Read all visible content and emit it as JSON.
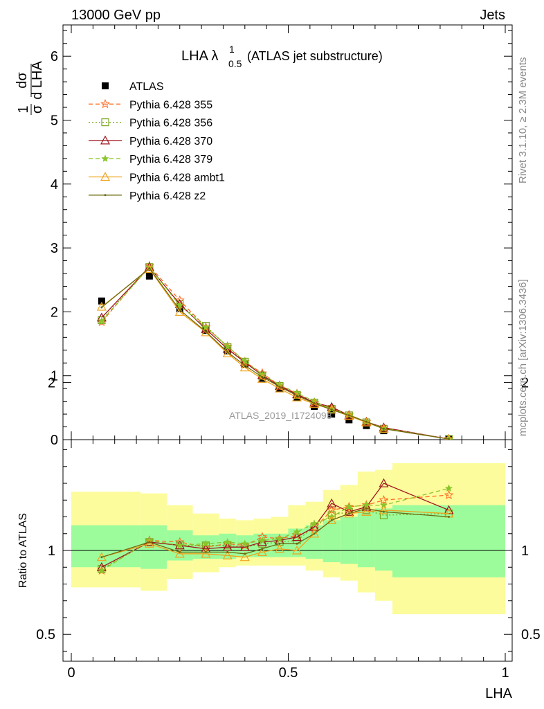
{
  "header": {
    "left": "13000 GeV pp",
    "right": "Jets"
  },
  "side": {
    "top": "Rivet 3.1.10, ≥ 2.3M events",
    "bottom": "mcplots.cern.ch [arXiv:1306.3436]"
  },
  "watermark": "ATLAS_2019_I1724098",
  "plot_title": {
    "main": "LHA λ",
    "sub": "0.5",
    "sup": "1",
    "suffix": "(ATLAS jet substructure)"
  },
  "axes": {
    "x_label": "LHA",
    "y_label_main": {
      "frac1": "1",
      "frac1_den": "σ",
      "frac2": "dσ",
      "frac2_den": "d LHA"
    },
    "y_label_ratio": "Ratio to ATLAS",
    "main_ticks": [
      "0",
      "1",
      "2",
      "3",
      "4",
      "5",
      "6"
    ],
    "ratio_ticks": [
      "0.5",
      "1",
      "2"
    ],
    "x_ticks": [
      "0",
      "0.5",
      "1"
    ]
  },
  "colors": {
    "ATLAS": "#000000",
    "p355": "#ff6a1f",
    "p356": "#7aa51e",
    "p370": "#a0141c",
    "p379": "#8ac52b",
    "ambt1": "#f0a31d",
    "z2": "#6b6b12",
    "band_green": "#9cfc9c",
    "band_yellow": "#fcfc9c"
  },
  "chart_data": [
    {
      "type": "line",
      "panel": "main",
      "xlabel": "LHA",
      "xlim": [
        0,
        1
      ],
      "ylim": [
        0,
        6.5
      ],
      "x": [
        0.07,
        0.18,
        0.25,
        0.31,
        0.36,
        0.4,
        0.44,
        0.48,
        0.52,
        0.56,
        0.6,
        0.64,
        0.68,
        0.72,
        0.87
      ],
      "series": [
        {
          "name": "ATLAS",
          "marker": "square",
          "values": [
            2.17,
            2.56,
            2.05,
            1.71,
            1.39,
            1.18,
            0.96,
            0.8,
            0.66,
            0.52,
            0.4,
            0.31,
            0.22,
            0.14,
            0.01
          ]
        },
        {
          "name": "Pythia 6.428 355",
          "marker": "star",
          "dash": "6,4",
          "values": [
            1.84,
            2.72,
            2.18,
            1.76,
            1.46,
            1.22,
            1.04,
            0.85,
            0.72,
            0.58,
            0.49,
            0.39,
            0.28,
            0.18,
            0.01
          ]
        },
        {
          "name": "Pythia 6.428 356",
          "marker": "open-square",
          "dash": "2,3",
          "values": [
            1.87,
            2.7,
            2.12,
            1.78,
            1.45,
            1.22,
            1.0,
            0.84,
            0.7,
            0.58,
            0.48,
            0.38,
            0.27,
            0.17,
            0.01
          ]
        },
        {
          "name": "Pythia 6.428 370",
          "marker": "open-triangle",
          "values": [
            1.91,
            2.7,
            2.12,
            1.73,
            1.42,
            1.21,
            1.01,
            0.84,
            0.71,
            0.58,
            0.51,
            0.38,
            0.28,
            0.19,
            0.01
          ]
        },
        {
          "name": "Pythia 6.428 379",
          "marker": "small-star",
          "dash": "6,4",
          "values": [
            1.86,
            2.7,
            2.1,
            1.76,
            1.46,
            1.23,
            1.02,
            0.86,
            0.73,
            0.6,
            0.48,
            0.39,
            0.28,
            0.18,
            0.01
          ]
        },
        {
          "name": "Pythia 6.428 ambt1",
          "marker": "open-triangle",
          "values": [
            2.08,
            2.67,
            2.0,
            1.68,
            1.35,
            1.13,
            0.95,
            0.8,
            0.66,
            0.56,
            0.47,
            0.37,
            0.27,
            0.17,
            0.01
          ]
        },
        {
          "name": "Pythia 6.428 z2",
          "marker": "dot",
          "values": [
            2.07,
            2.68,
            2.03,
            1.69,
            1.37,
            1.16,
            0.98,
            0.83,
            0.69,
            0.57,
            0.47,
            0.38,
            0.28,
            0.17,
            0.01
          ]
        }
      ]
    },
    {
      "type": "line",
      "panel": "ratio",
      "ylabel": "Ratio to ATLAS",
      "xlim": [
        0,
        1
      ],
      "ylim": [
        0.34,
        2.3
      ],
      "x": [
        0.07,
        0.18,
        0.25,
        0.31,
        0.36,
        0.4,
        0.44,
        0.48,
        0.52,
        0.56,
        0.6,
        0.64,
        0.68,
        0.72,
        0.87
      ],
      "series": [
        {
          "name": "Pythia 6.428 355",
          "values": [
            0.88,
            1.06,
            1.05,
            1.02,
            1.04,
            1.03,
            1.08,
            1.07,
            1.09,
            1.13,
            1.24,
            1.26,
            1.27,
            1.3,
            1.33
          ]
        },
        {
          "name": "Pythia 6.428 356",
          "values": [
            0.89,
            1.05,
            1.03,
            1.03,
            1.03,
            1.02,
            1.04,
            1.05,
            1.06,
            1.14,
            1.21,
            1.23,
            1.24,
            1.21,
            1.22
          ]
        },
        {
          "name": "Pythia 6.428 370",
          "values": [
            0.9,
            1.05,
            1.03,
            1.01,
            1.02,
            1.02,
            1.05,
            1.06,
            1.08,
            1.14,
            1.28,
            1.23,
            1.26,
            1.4,
            1.24
          ]
        },
        {
          "name": "Pythia 6.428 379",
          "values": [
            0.88,
            1.06,
            1.03,
            1.04,
            1.05,
            1.04,
            1.06,
            1.07,
            1.11,
            1.16,
            1.2,
            1.26,
            1.27,
            1.27,
            1.37
          ]
        },
        {
          "name": "Pythia 6.428 ambt1",
          "values": [
            0.96,
            1.04,
            0.98,
            0.98,
            0.97,
            0.96,
            0.99,
            1.01,
            1.0,
            1.1,
            1.18,
            1.22,
            1.23,
            1.24,
            1.22
          ]
        },
        {
          "name": "Pythia 6.428 z2",
          "values": [
            0.96,
            1.05,
            0.99,
            0.99,
            0.99,
            0.98,
            1.01,
            1.04,
            1.04,
            1.1,
            1.18,
            1.22,
            1.25,
            1.23,
            1.2
          ]
        }
      ],
      "bands": {
        "edges": [
          0,
          0.16,
          0.22,
          0.28,
          0.34,
          0.38,
          0.42,
          0.46,
          0.5,
          0.54,
          0.58,
          0.62,
          0.66,
          0.7,
          0.74,
          1.0
        ],
        "inner": [
          [
            0.9,
            1.15
          ],
          [
            0.89,
            1.15
          ],
          [
            0.94,
            1.12
          ],
          [
            0.95,
            1.09
          ],
          [
            0.95,
            1.1
          ],
          [
            0.96,
            1.09
          ],
          [
            0.96,
            1.1
          ],
          [
            0.96,
            1.1
          ],
          [
            0.96,
            1.13
          ],
          [
            0.95,
            1.15
          ],
          [
            0.93,
            1.18
          ],
          [
            0.92,
            1.2
          ],
          [
            0.9,
            1.24
          ],
          [
            0.88,
            1.25
          ],
          [
            0.84,
            1.27
          ]
        ],
        "outer": [
          [
            0.78,
            1.35
          ],
          [
            0.76,
            1.34
          ],
          [
            0.83,
            1.27
          ],
          [
            0.87,
            1.22
          ],
          [
            0.9,
            1.19
          ],
          [
            0.91,
            1.18
          ],
          [
            0.91,
            1.19
          ],
          [
            0.91,
            1.2
          ],
          [
            0.91,
            1.27
          ],
          [
            0.88,
            1.29
          ],
          [
            0.84,
            1.36
          ],
          [
            0.82,
            1.39
          ],
          [
            0.75,
            1.47
          ],
          [
            0.7,
            1.48
          ],
          [
            0.62,
            1.52
          ]
        ]
      }
    }
  ]
}
